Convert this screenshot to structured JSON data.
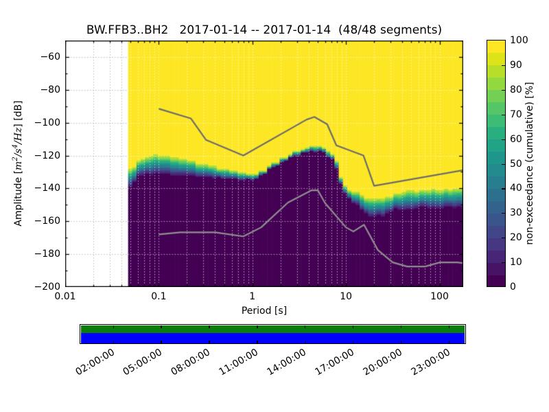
{
  "title": "BW.FFB3..BH2   2017-01-14 -- 2017-01-14  (48/48 segments)",
  "axes": {
    "xlabel": "Period [s]",
    "x_tick_labels": [
      "0.01",
      "0.1",
      "1",
      "10",
      "100"
    ],
    "y_tick_labels": [
      "−60",
      "−80",
      "−100",
      "−120",
      "−140",
      "−160",
      "−180",
      "−200"
    ],
    "ylabel": {
      "pre": "Amplitude [",
      "m": "m",
      "sup2": "2",
      "s": "/s",
      "sup4": "4",
      "hz": "/Hz",
      "post": "] [dB]"
    }
  },
  "colorbar": {
    "label": "non-exceedance (cumulative) [%]",
    "tick_labels": [
      "0",
      "10",
      "20",
      "30",
      "40",
      "50",
      "60",
      "70",
      "80",
      "90",
      "100"
    ],
    "tick_values": [
      0,
      10,
      20,
      30,
      40,
      50,
      60,
      70,
      80,
      90,
      100
    ],
    "discrete_steps": 20
  },
  "coverage_bar": {
    "tick_labels": [
      "02:00:00",
      "05:00:00",
      "08:00:00",
      "11:00:00",
      "14:00:00",
      "17:00:00",
      "20:00:00",
      "23:00:00"
    ],
    "tick_hours": [
      2,
      5,
      8,
      11,
      14,
      17,
      20,
      23
    ],
    "span_hours": 24
  },
  "colors": {
    "yellow": "#fde725",
    "purple": "#440154",
    "nhnm_line": "#6b6b6b",
    "nlnm_line": "#909090",
    "grid_over_white": "#bbbbbb",
    "grid_over_data": "rgba(255,255,255,0.65)",
    "coverage_green": "#0a7e0a",
    "coverage_blue": "#0000ff",
    "viridis_stops": [
      "#440154",
      "#471365",
      "#482576",
      "#453781",
      "#404688",
      "#39558c",
      "#33638d",
      "#2d708e",
      "#287d8e",
      "#238a8d",
      "#1f968b",
      "#20a386",
      "#29af7f",
      "#3cbc74",
      "#55c667",
      "#74d055",
      "#94d840",
      "#b8de29",
      "#dce318",
      "#fde725"
    ]
  },
  "chart_data": {
    "type": "heatmap",
    "title": "BW.FFB3..BH2   2017-01-14 -- 2017-01-14  (48/48 segments)",
    "xlabel": "Period [s]",
    "ylabel": "Amplitude [m^2/s^4/Hz] [dB]",
    "x_scale": "log",
    "x_range": [
      0.01,
      179
    ],
    "y_range": [
      -200,
      -50
    ],
    "x_ticks": [
      0.01,
      0.1,
      1,
      10,
      100
    ],
    "y_ticks": [
      -60,
      -80,
      -100,
      -120,
      -140,
      -160,
      -180,
      -200
    ],
    "grid": true,
    "colorbar_range": [
      0,
      100
    ],
    "colormap": "viridis",
    "data_period_range": [
      0.047,
      179
    ],
    "cumulative_boundary": {
      "description": "non-exceedance transition band: db_at_100pct = bottom of yellow (100%), db_at_0pct = top of dark purple (0%)",
      "periods": [
        0.047,
        0.063,
        0.089,
        0.126,
        0.21,
        0.35,
        0.63,
        0.95,
        1.26,
        1.51,
        2.09,
        2.88,
        4.2,
        5.5,
        7.1,
        7.9,
        8.5,
        10,
        12.9,
        19,
        25,
        34,
        48,
        71,
        100,
        152,
        179
      ],
      "db_at_100pct": [
        -130,
        -122.5,
        -119.8,
        -120.8,
        -122.8,
        -125.8,
        -129,
        -131.1,
        -129.5,
        -126.3,
        -121.5,
        -117.5,
        -114.3,
        -114.4,
        -118,
        -123,
        -130,
        -139,
        -142.5,
        -146.5,
        -145.9,
        -143.8,
        -141.5,
        -141.5,
        -140.5,
        -140.3,
        -140.3
      ],
      "db_at_0pct": [
        -139.5,
        -132,
        -131,
        -131.5,
        -132.4,
        -133.2,
        -134,
        -134.7,
        -132.5,
        -128.6,
        -123.7,
        -119.6,
        -117.5,
        -117.7,
        -121.5,
        -127,
        -136,
        -144,
        -150,
        -158,
        -156,
        -152.8,
        -152,
        -152,
        -151.5,
        -151,
        -151
      ]
    },
    "noise_models": {
      "nhnm": [
        [
          0.1,
          -91.5
        ],
        [
          0.22,
          -97.4
        ],
        [
          0.32,
          -110.5
        ],
        [
          0.8,
          -120.0
        ],
        [
          3.8,
          -98.1
        ],
        [
          4.6,
          -96.5
        ],
        [
          6.3,
          -101.0
        ],
        [
          7.9,
          -113.8
        ],
        [
          15.4,
          -120.0
        ],
        [
          20,
          -138.4
        ],
        [
          179,
          -128.9
        ]
      ],
      "nlnm": [
        [
          0.1,
          -168.0
        ],
        [
          0.17,
          -166.7
        ],
        [
          0.4,
          -166.7
        ],
        [
          0.8,
          -169.2
        ],
        [
          1.24,
          -163.7
        ],
        [
          2.4,
          -148.6
        ],
        [
          4.3,
          -141.1
        ],
        [
          5,
          -141.1
        ],
        [
          6,
          -149.0
        ],
        [
          10,
          -163.7
        ],
        [
          12,
          -166.2
        ],
        [
          15.6,
          -162.1
        ],
        [
          21.9,
          -177.5
        ],
        [
          31.6,
          -185.0
        ],
        [
          45,
          -187.5
        ],
        [
          70,
          -187.5
        ],
        [
          101,
          -185.0
        ],
        [
          154,
          -185.0
        ],
        [
          179,
          -185.4
        ]
      ]
    }
  }
}
